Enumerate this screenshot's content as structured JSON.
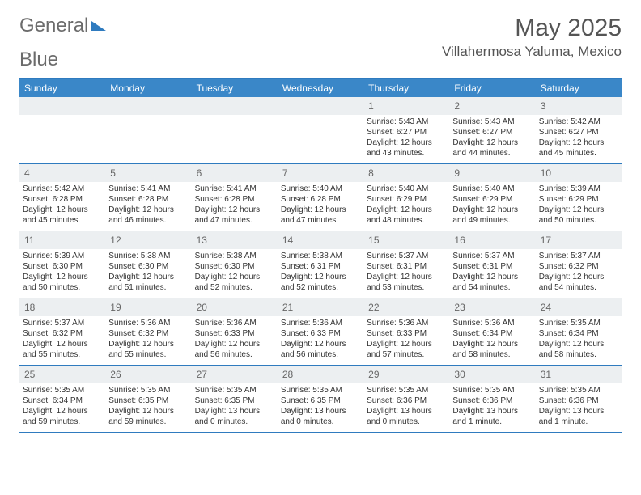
{
  "logo": {
    "text1": "General",
    "text2": "Blue"
  },
  "title": "May 2025",
  "location": "Villahermosa Yaluma, Mexico",
  "weekdays": [
    "Sunday",
    "Monday",
    "Tuesday",
    "Wednesday",
    "Thursday",
    "Friday",
    "Saturday"
  ],
  "colors": {
    "header_bg": "#3a87c8",
    "border": "#2f7bbf",
    "daynum_bg": "#eceff1",
    "text": "#333333"
  },
  "weeks": [
    [
      null,
      null,
      null,
      null,
      {
        "n": "1",
        "sr": "Sunrise: 5:43 AM",
        "ss": "Sunset: 6:27 PM",
        "d1": "Daylight: 12 hours",
        "d2": "and 43 minutes."
      },
      {
        "n": "2",
        "sr": "Sunrise: 5:43 AM",
        "ss": "Sunset: 6:27 PM",
        "d1": "Daylight: 12 hours",
        "d2": "and 44 minutes."
      },
      {
        "n": "3",
        "sr": "Sunrise: 5:42 AM",
        "ss": "Sunset: 6:27 PM",
        "d1": "Daylight: 12 hours",
        "d2": "and 45 minutes."
      }
    ],
    [
      {
        "n": "4",
        "sr": "Sunrise: 5:42 AM",
        "ss": "Sunset: 6:28 PM",
        "d1": "Daylight: 12 hours",
        "d2": "and 45 minutes."
      },
      {
        "n": "5",
        "sr": "Sunrise: 5:41 AM",
        "ss": "Sunset: 6:28 PM",
        "d1": "Daylight: 12 hours",
        "d2": "and 46 minutes."
      },
      {
        "n": "6",
        "sr": "Sunrise: 5:41 AM",
        "ss": "Sunset: 6:28 PM",
        "d1": "Daylight: 12 hours",
        "d2": "and 47 minutes."
      },
      {
        "n": "7",
        "sr": "Sunrise: 5:40 AM",
        "ss": "Sunset: 6:28 PM",
        "d1": "Daylight: 12 hours",
        "d2": "and 47 minutes."
      },
      {
        "n": "8",
        "sr": "Sunrise: 5:40 AM",
        "ss": "Sunset: 6:29 PM",
        "d1": "Daylight: 12 hours",
        "d2": "and 48 minutes."
      },
      {
        "n": "9",
        "sr": "Sunrise: 5:40 AM",
        "ss": "Sunset: 6:29 PM",
        "d1": "Daylight: 12 hours",
        "d2": "and 49 minutes."
      },
      {
        "n": "10",
        "sr": "Sunrise: 5:39 AM",
        "ss": "Sunset: 6:29 PM",
        "d1": "Daylight: 12 hours",
        "d2": "and 50 minutes."
      }
    ],
    [
      {
        "n": "11",
        "sr": "Sunrise: 5:39 AM",
        "ss": "Sunset: 6:30 PM",
        "d1": "Daylight: 12 hours",
        "d2": "and 50 minutes."
      },
      {
        "n": "12",
        "sr": "Sunrise: 5:38 AM",
        "ss": "Sunset: 6:30 PM",
        "d1": "Daylight: 12 hours",
        "d2": "and 51 minutes."
      },
      {
        "n": "13",
        "sr": "Sunrise: 5:38 AM",
        "ss": "Sunset: 6:30 PM",
        "d1": "Daylight: 12 hours",
        "d2": "and 52 minutes."
      },
      {
        "n": "14",
        "sr": "Sunrise: 5:38 AM",
        "ss": "Sunset: 6:31 PM",
        "d1": "Daylight: 12 hours",
        "d2": "and 52 minutes."
      },
      {
        "n": "15",
        "sr": "Sunrise: 5:37 AM",
        "ss": "Sunset: 6:31 PM",
        "d1": "Daylight: 12 hours",
        "d2": "and 53 minutes."
      },
      {
        "n": "16",
        "sr": "Sunrise: 5:37 AM",
        "ss": "Sunset: 6:31 PM",
        "d1": "Daylight: 12 hours",
        "d2": "and 54 minutes."
      },
      {
        "n": "17",
        "sr": "Sunrise: 5:37 AM",
        "ss": "Sunset: 6:32 PM",
        "d1": "Daylight: 12 hours",
        "d2": "and 54 minutes."
      }
    ],
    [
      {
        "n": "18",
        "sr": "Sunrise: 5:37 AM",
        "ss": "Sunset: 6:32 PM",
        "d1": "Daylight: 12 hours",
        "d2": "and 55 minutes."
      },
      {
        "n": "19",
        "sr": "Sunrise: 5:36 AM",
        "ss": "Sunset: 6:32 PM",
        "d1": "Daylight: 12 hours",
        "d2": "and 55 minutes."
      },
      {
        "n": "20",
        "sr": "Sunrise: 5:36 AM",
        "ss": "Sunset: 6:33 PM",
        "d1": "Daylight: 12 hours",
        "d2": "and 56 minutes."
      },
      {
        "n": "21",
        "sr": "Sunrise: 5:36 AM",
        "ss": "Sunset: 6:33 PM",
        "d1": "Daylight: 12 hours",
        "d2": "and 56 minutes."
      },
      {
        "n": "22",
        "sr": "Sunrise: 5:36 AM",
        "ss": "Sunset: 6:33 PM",
        "d1": "Daylight: 12 hours",
        "d2": "and 57 minutes."
      },
      {
        "n": "23",
        "sr": "Sunrise: 5:36 AM",
        "ss": "Sunset: 6:34 PM",
        "d1": "Daylight: 12 hours",
        "d2": "and 58 minutes."
      },
      {
        "n": "24",
        "sr": "Sunrise: 5:35 AM",
        "ss": "Sunset: 6:34 PM",
        "d1": "Daylight: 12 hours",
        "d2": "and 58 minutes."
      }
    ],
    [
      {
        "n": "25",
        "sr": "Sunrise: 5:35 AM",
        "ss": "Sunset: 6:34 PM",
        "d1": "Daylight: 12 hours",
        "d2": "and 59 minutes."
      },
      {
        "n": "26",
        "sr": "Sunrise: 5:35 AM",
        "ss": "Sunset: 6:35 PM",
        "d1": "Daylight: 12 hours",
        "d2": "and 59 minutes."
      },
      {
        "n": "27",
        "sr": "Sunrise: 5:35 AM",
        "ss": "Sunset: 6:35 PM",
        "d1": "Daylight: 13 hours",
        "d2": "and 0 minutes."
      },
      {
        "n": "28",
        "sr": "Sunrise: 5:35 AM",
        "ss": "Sunset: 6:35 PM",
        "d1": "Daylight: 13 hours",
        "d2": "and 0 minutes."
      },
      {
        "n": "29",
        "sr": "Sunrise: 5:35 AM",
        "ss": "Sunset: 6:36 PM",
        "d1": "Daylight: 13 hours",
        "d2": "and 0 minutes."
      },
      {
        "n": "30",
        "sr": "Sunrise: 5:35 AM",
        "ss": "Sunset: 6:36 PM",
        "d1": "Daylight: 13 hours",
        "d2": "and 1 minute."
      },
      {
        "n": "31",
        "sr": "Sunrise: 5:35 AM",
        "ss": "Sunset: 6:36 PM",
        "d1": "Daylight: 13 hours",
        "d2": "and 1 minute."
      }
    ]
  ]
}
